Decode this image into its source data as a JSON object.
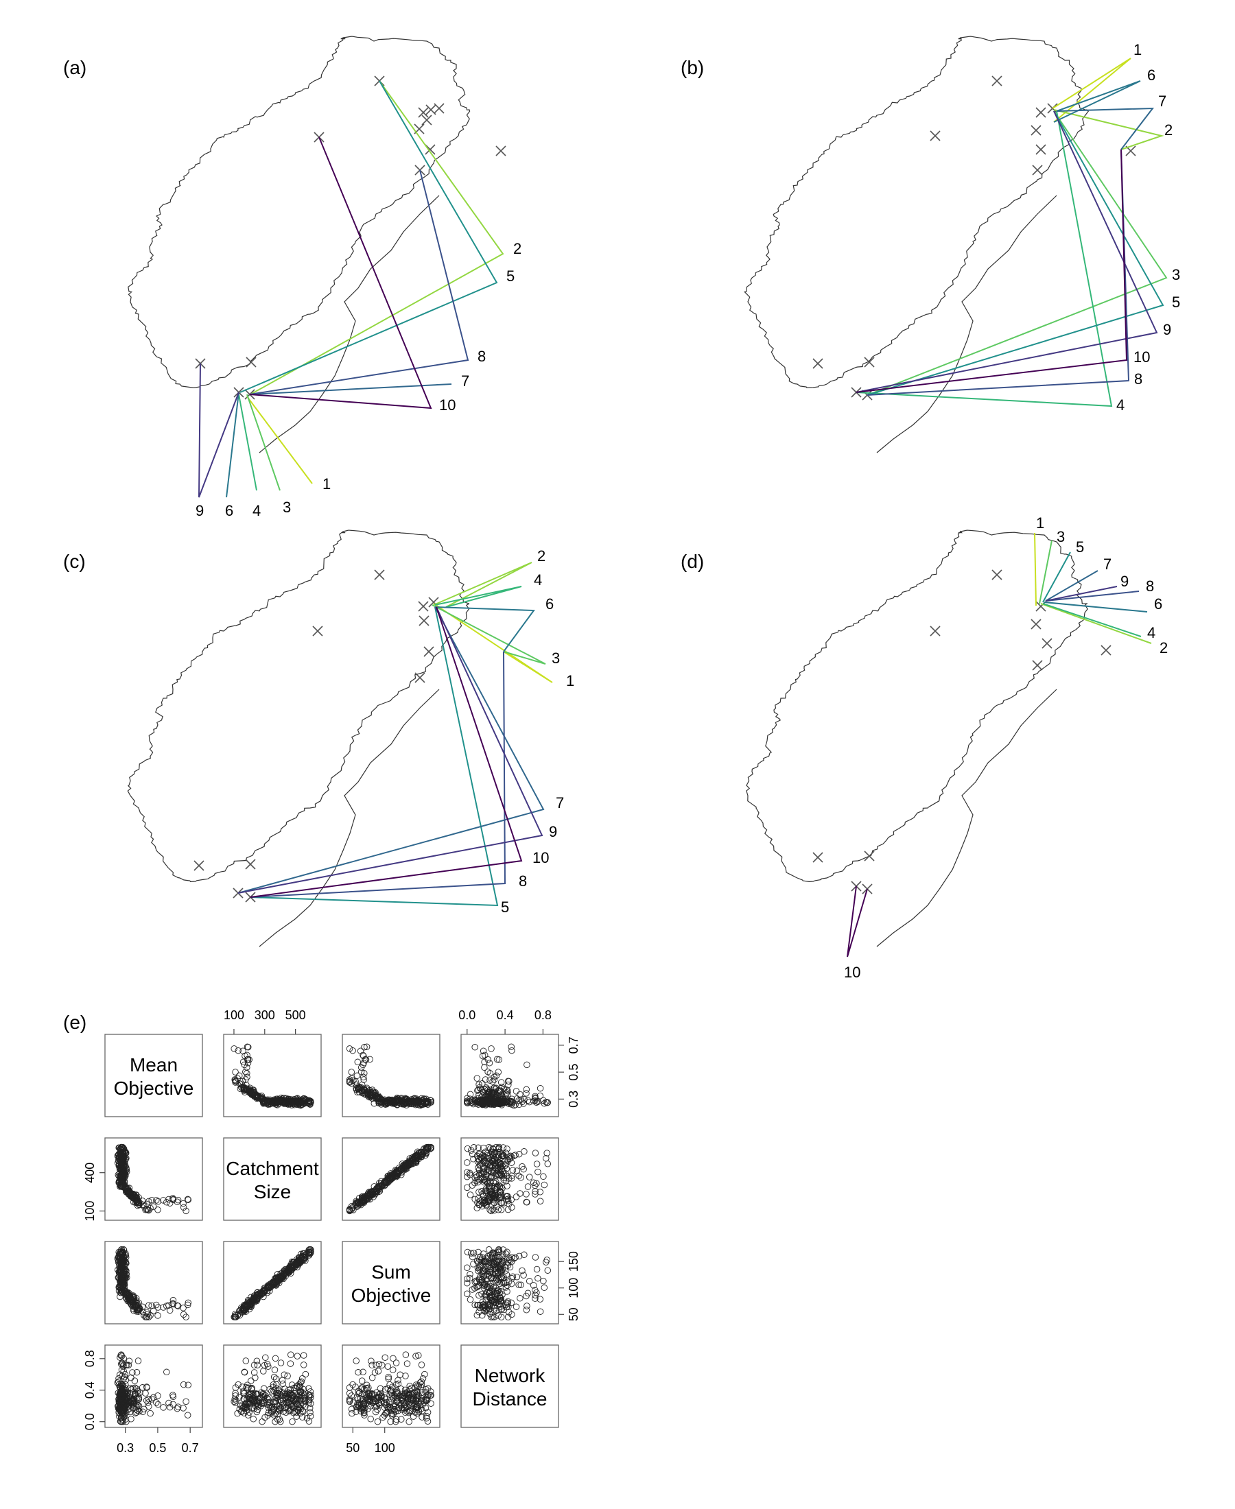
{
  "panels": [
    {
      "label": "(a)",
      "ordinal_labels": [
        "1",
        "2",
        "3",
        "4",
        "5",
        "6",
        "7",
        "8",
        "9",
        "10"
      ]
    },
    {
      "label": "(b)",
      "ordinal_labels": [
        "1",
        "2",
        "3",
        "4",
        "5",
        "6",
        "7",
        "8",
        "9",
        "10"
      ]
    },
    {
      "label": "(c)",
      "ordinal_labels": [
        "1",
        "2",
        "3",
        "4",
        "5",
        "6",
        "7",
        "8",
        "9",
        "10"
      ]
    },
    {
      "label": "(d)",
      "ordinal_labels": [
        "1",
        "2",
        "3",
        "4",
        "5",
        "6",
        "7",
        "8",
        "9",
        "10"
      ]
    }
  ],
  "ordinal_colors": [
    "#c8e020",
    "#93d741",
    "#5ec962",
    "#35b779",
    "#21918c",
    "#2a788e",
    "#31688e",
    "#3b528b",
    "#443983",
    "#440154"
  ],
  "scatter_panel_label": "(e)",
  "chart_data": {
    "type": "scatter",
    "variables": [
      {
        "name": "Mean Objective",
        "line1": "Mean",
        "line2": "Objective",
        "range": [
          0.2,
          0.75
        ],
        "ticks": [
          "0.3",
          "0.5",
          "0.7"
        ]
      },
      {
        "name": "Catchment Size",
        "line1": "Catchment",
        "line2": "Size",
        "range": [
          60,
          640
        ],
        "ticks": [
          "100",
          "300",
          "500"
        ],
        "left_ticks": [
          "100",
          "400"
        ]
      },
      {
        "name": "Sum Objective",
        "line1": "Sum",
        "line2": "Objective",
        "range": [
          40,
          180
        ],
        "ticks": [
          "50",
          "100"
        ],
        "right_ticks": [
          "50",
          "100",
          "150"
        ]
      },
      {
        "name": "Network Distance",
        "line1": "Network",
        "line2": "Distance",
        "range": [
          -0.02,
          0.92
        ],
        "ticks": [
          "0.0",
          "0.4",
          "0.8"
        ],
        "left_ticks": [
          "0.0",
          "0.4",
          "0.8"
        ]
      }
    ],
    "top_axis_labels": [
      "100",
      "300",
      "500",
      "0.0",
      "0.4",
      "0.8"
    ],
    "right_axis_labels": [
      "0.3",
      "0.5",
      "0.7",
      "50",
      "100",
      "150"
    ],
    "bottom_axis_labels": [
      "0.3",
      "0.5",
      "0.7",
      "50",
      "100"
    ],
    "left_axis_labels": [
      "100",
      "400",
      "0.0",
      "0.4",
      "0.8"
    ],
    "n_points": 320
  }
}
